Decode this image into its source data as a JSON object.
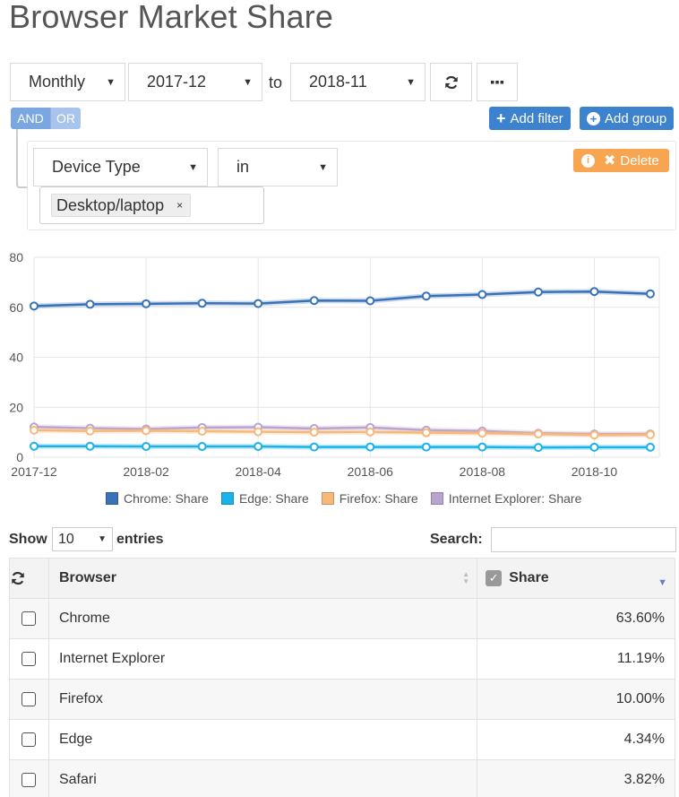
{
  "page": {
    "title": "Browser Market Share"
  },
  "controls": {
    "period": "Monthly",
    "from": "2017-12",
    "to_label": "to",
    "to": "2018-11",
    "refresh_icon": "refresh-icon",
    "more_icon": "ellipsis-icon"
  },
  "logic": {
    "and": "AND",
    "or": "OR"
  },
  "actions": {
    "add_filter": "Add filter",
    "add_group": "Add group"
  },
  "filter": {
    "field": "Device Type",
    "operator": "in",
    "delete_label": "Delete",
    "tag": "Desktop/laptop",
    "tag_remove": "×"
  },
  "colors": {
    "chrome": "#3a72b8",
    "edge": "#1ab2e8",
    "firefox": "#f7b97a",
    "ie": "#b9a3d0",
    "primary": "#3c82cf",
    "warning": "#f7a550"
  },
  "chart_data": {
    "type": "line",
    "x": [
      "2017-12",
      "2018-01",
      "2018-02",
      "2018-03",
      "2018-04",
      "2018-05",
      "2018-06",
      "2018-07",
      "2018-08",
      "2018-09",
      "2018-10",
      "2018-11"
    ],
    "x_tick_labels": [
      "2017-12",
      "2018-02",
      "2018-04",
      "2018-06",
      "2018-08",
      "2018-10"
    ],
    "y_ticks": [
      "0",
      "20",
      "40",
      "60",
      "80"
    ],
    "ylim": [
      0,
      80
    ],
    "grid": true,
    "legend_position": "bottom",
    "series": [
      {
        "name": "Chrome: Share",
        "color": "#3a72b8",
        "values": [
          60.5,
          61.2,
          61.4,
          61.6,
          61.5,
          62.7,
          62.6,
          64.5,
          65.1,
          66.1,
          66.3,
          65.4
        ]
      },
      {
        "name": "Edge: Share",
        "color": "#1ab2e8",
        "values": [
          4.4,
          4.4,
          4.3,
          4.3,
          4.3,
          4.1,
          4.1,
          4.1,
          4.1,
          3.9,
          4.0,
          4.0
        ]
      },
      {
        "name": "Firefox: Share",
        "color": "#f7b97a",
        "values": [
          10.8,
          10.5,
          10.6,
          10.4,
          10.2,
          10.0,
          10.1,
          9.8,
          9.6,
          9.3,
          8.9,
          9.0
        ]
      },
      {
        "name": "Internet Explorer: Share",
        "color": "#b9a3d0",
        "values": [
          12.1,
          11.6,
          11.3,
          11.9,
          12.0,
          11.5,
          11.9,
          10.8,
          10.5,
          9.6,
          9.3,
          9.3
        ]
      }
    ]
  },
  "table_controls": {
    "show": "Show",
    "entries_value": "10",
    "entries": "entries",
    "search": "Search:",
    "search_value": ""
  },
  "table": {
    "headers": {
      "browser": "Browser",
      "share": "Share"
    },
    "rows": [
      {
        "browser": "Chrome",
        "share": "63.60%"
      },
      {
        "browser": "Internet Explorer",
        "share": "11.19%"
      },
      {
        "browser": "Firefox",
        "share": "10.00%"
      },
      {
        "browser": "Edge",
        "share": "4.34%"
      },
      {
        "browser": "Safari",
        "share": "3.82%"
      }
    ]
  }
}
